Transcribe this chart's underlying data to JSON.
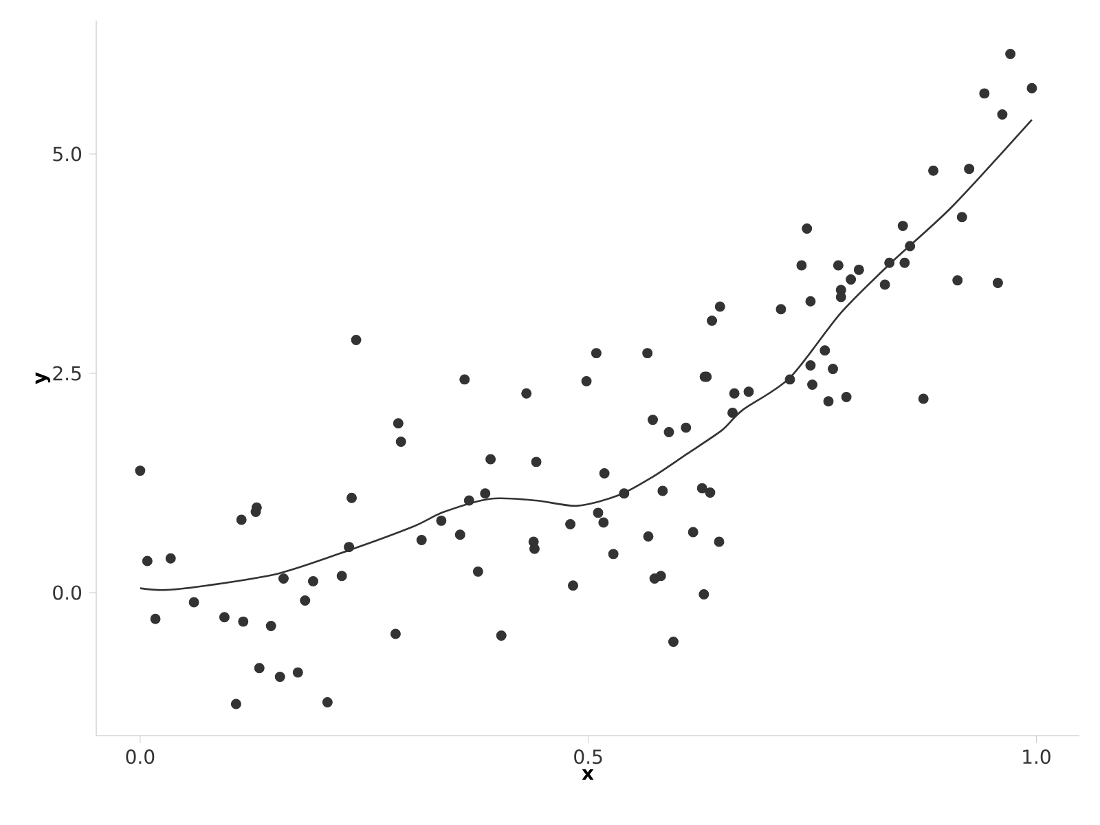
{
  "chart_data": {
    "type": "scatter",
    "xlabel": "x",
    "ylabel": "y",
    "xlim": [
      -0.049,
      1.048
    ],
    "ylim": [
      -1.63,
      6.52
    ],
    "xticks": [
      {
        "value": 0,
        "label": "0.0"
      },
      {
        "value": 0.5,
        "label": "0.5"
      },
      {
        "value": 1,
        "label": "1.0"
      }
    ],
    "yticks": [
      {
        "value": 0,
        "label": "0.0"
      },
      {
        "value": 2.5,
        "label": "2.5"
      },
      {
        "value": 5,
        "label": "5.0"
      }
    ],
    "grid": false,
    "series": [
      {
        "color": "#333333",
        "marker": "circle",
        "x": [
          0.0,
          0.008,
          0.017,
          0.034,
          0.06,
          0.094,
          0.107,
          0.113,
          0.115,
          0.129,
          0.13,
          0.133,
          0.146,
          0.156,
          0.16,
          0.176,
          0.184,
          0.193,
          0.209,
          0.225,
          0.233,
          0.236,
          0.241,
          0.285,
          0.288,
          0.291,
          0.314,
          0.336,
          0.357,
          0.362,
          0.367,
          0.385,
          0.377,
          0.391,
          0.403,
          0.431,
          0.439,
          0.44,
          0.442,
          0.48,
          0.483,
          0.498,
          0.509,
          0.511,
          0.517,
          0.518,
          0.528,
          0.54,
          0.566,
          0.567,
          0.572,
          0.574,
          0.581,
          0.583,
          0.59,
          0.595,
          0.609,
          0.617,
          0.627,
          0.636,
          0.629,
          0.63,
          0.632,
          0.638,
          0.646,
          0.647,
          0.661,
          0.663,
          0.679,
          0.715,
          0.725,
          0.738,
          0.744,
          0.748,
          0.748,
          0.75,
          0.764,
          0.768,
          0.773,
          0.779,
          0.782,
          0.782,
          0.788,
          0.793,
          0.802,
          0.831,
          0.836,
          0.851,
          0.853,
          0.859,
          0.874,
          0.885,
          0.912,
          0.917,
          0.925,
          0.942,
          0.957,
          0.962,
          0.971,
          0.995
        ],
        "values": [
          1.39,
          0.36,
          -0.3,
          0.39,
          -0.11,
          -0.28,
          -1.27,
          0.83,
          -0.33,
          0.92,
          0.97,
          -0.86,
          -0.38,
          -0.96,
          0.16,
          -0.91,
          -0.09,
          0.13,
          -1.25,
          0.19,
          0.52,
          1.08,
          2.88,
          -0.47,
          1.93,
          1.72,
          0.6,
          0.82,
          0.66,
          2.43,
          1.05,
          1.13,
          0.24,
          1.52,
          -0.49,
          2.27,
          0.58,
          0.5,
          1.49,
          0.78,
          0.08,
          2.41,
          2.73,
          0.91,
          0.8,
          1.36,
          0.44,
          1.13,
          2.73,
          0.64,
          1.97,
          0.16,
          0.19,
          1.16,
          1.83,
          -0.56,
          1.88,
          0.69,
          1.19,
          1.14,
          -0.02,
          2.46,
          2.46,
          3.1,
          0.58,
          3.26,
          2.05,
          2.27,
          2.29,
          3.23,
          2.43,
          3.73,
          4.15,
          3.32,
          2.59,
          2.37,
          2.76,
          2.18,
          2.55,
          3.73,
          3.45,
          3.37,
          2.23,
          3.57,
          3.68,
          3.51,
          3.76,
          4.18,
          3.76,
          3.95,
          2.21,
          4.81,
          3.56,
          4.28,
          4.83,
          5.69,
          3.53,
          5.45,
          6.14,
          5.75
        ]
      },
      {
        "type": "line",
        "color": "#333333",
        "marker": "none",
        "line_style": "solid",
        "x": [
          0.0,
          0.028,
          0.074,
          0.155,
          0.235,
          0.304,
          0.339,
          0.391,
          0.442,
          0.488,
          0.534,
          0.572,
          0.61,
          0.649,
          0.672,
          0.725,
          0.782,
          0.84,
          0.906,
          0.995
        ],
        "values": [
          0.05,
          0.03,
          0.08,
          0.22,
          0.49,
          0.75,
          0.92,
          1.07,
          1.05,
          0.99,
          1.11,
          1.32,
          1.58,
          1.85,
          2.08,
          2.45,
          3.19,
          3.78,
          4.4,
          5.39
        ]
      }
    ]
  }
}
